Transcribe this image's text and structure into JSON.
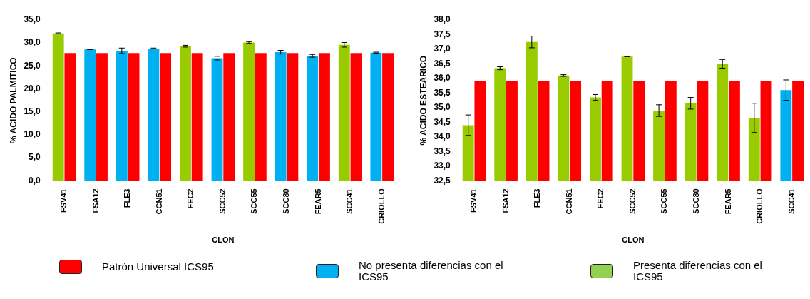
{
  "chart_data": [
    {
      "type": "bar",
      "xlabel": "CLON",
      "ylabel": "% ACIDO PALMITICO",
      "categories": [
        "FSV41",
        "FSA12",
        "FLE3",
        "CCN51",
        "FEC2",
        "SCC52",
        "SCC55",
        "SCC80",
        "FEAR5",
        "SCC41",
        "CRIOLLO"
      ],
      "ylim": [
        0,
        35
      ],
      "yticks": [
        {
          "value": 0,
          "label": "0,0"
        },
        {
          "value": 5,
          "label": "5,0"
        },
        {
          "value": 10,
          "label": "10,0"
        },
        {
          "value": 15,
          "label": "15,0"
        },
        {
          "value": 20,
          "label": "20,0"
        },
        {
          "value": 25,
          "label": "25,0"
        },
        {
          "value": 30,
          "label": "30,0"
        },
        {
          "value": 35,
          "label": "35,0"
        }
      ],
      "grid": false,
      "legend": false,
      "series": [
        {
          "values": [
            32.1,
            28.6,
            28.3,
            28.8,
            29.3,
            26.7,
            30.1,
            28.0,
            27.2,
            29.6,
            27.9
          ],
          "colors": [
            "#99cc00",
            "#00b0f0",
            "#00b0f0",
            "#00b0f0",
            "#99cc00",
            "#00b0f0",
            "#99cc00",
            "#00b0f0",
            "#00b0f0",
            "#99cc00",
            "#00b0f0"
          ],
          "errors": [
            0.1,
            0,
            0.6,
            0.1,
            0.2,
            0.4,
            0.2,
            0.4,
            0.3,
            0.5,
            0.1
          ]
        },
        {
          "color": "#ff0000",
          "values": [
            27.8,
            27.8,
            27.8,
            27.8,
            27.8,
            27.8,
            27.8,
            27.8,
            27.8,
            27.8,
            27.8
          ]
        }
      ]
    },
    {
      "type": "bar",
      "xlabel": "CLON",
      "ylabel": "% ACIDO ESTEARICO",
      "categories": [
        "FSV41",
        "FSA12",
        "FLE3",
        "CCN51",
        "FEC2",
        "SCC52",
        "SCC55",
        "SCC80",
        "FEAR5",
        "CRIOLLO",
        "SCC41"
      ],
      "ylim": [
        32.5,
        38
      ],
      "yticks": [
        {
          "value": 32.5,
          "label": "32,5"
        },
        {
          "value": 33,
          "label": "33,0"
        },
        {
          "value": 33.5,
          "label": "33,5"
        },
        {
          "value": 34,
          "label": "34,0"
        },
        {
          "value": 34.5,
          "label": "34,5"
        },
        {
          "value": 35,
          "label": "35,0"
        },
        {
          "value": 35.5,
          "label": "35,5"
        },
        {
          "value": 36,
          "label": "36,0"
        },
        {
          "value": 36.5,
          "label": "36,5"
        },
        {
          "value": 37,
          "label": "37,0"
        },
        {
          "value": 37.5,
          "label": "37,5"
        },
        {
          "value": 38,
          "label": "38,0"
        }
      ],
      "grid": false,
      "legend": false,
      "series": [
        {
          "values": [
            34.4,
            36.35,
            37.25,
            36.1,
            35.35,
            36.75,
            34.9,
            35.15,
            36.5,
            34.65,
            35.6
          ],
          "colors": [
            "#99cc00",
            "#99cc00",
            "#99cc00",
            "#99cc00",
            "#99cc00",
            "#99cc00",
            "#99cc00",
            "#99cc00",
            "#99cc00",
            "#99cc00",
            "#00b0f0"
          ],
          "errors": [
            0.35,
            0.05,
            0.2,
            0.03,
            0.1,
            0,
            0.2,
            0.2,
            0.15,
            0.5,
            0.35
          ]
        },
        {
          "color": "#ff0000",
          "values": [
            35.9,
            35.9,
            35.9,
            35.9,
            35.9,
            35.9,
            35.9,
            35.9,
            35.9,
            35.9,
            35.9
          ]
        }
      ]
    },
    {
      "type": "other",
      "categories": [
        "Patrón Universal ICS95",
        "No presenta diferencias con el ICS95",
        "Presenta diferencias con  el ICS95"
      ],
      "colors": [
        "#ff0000",
        "#00b0f0",
        "#92d050"
      ]
    }
  ]
}
